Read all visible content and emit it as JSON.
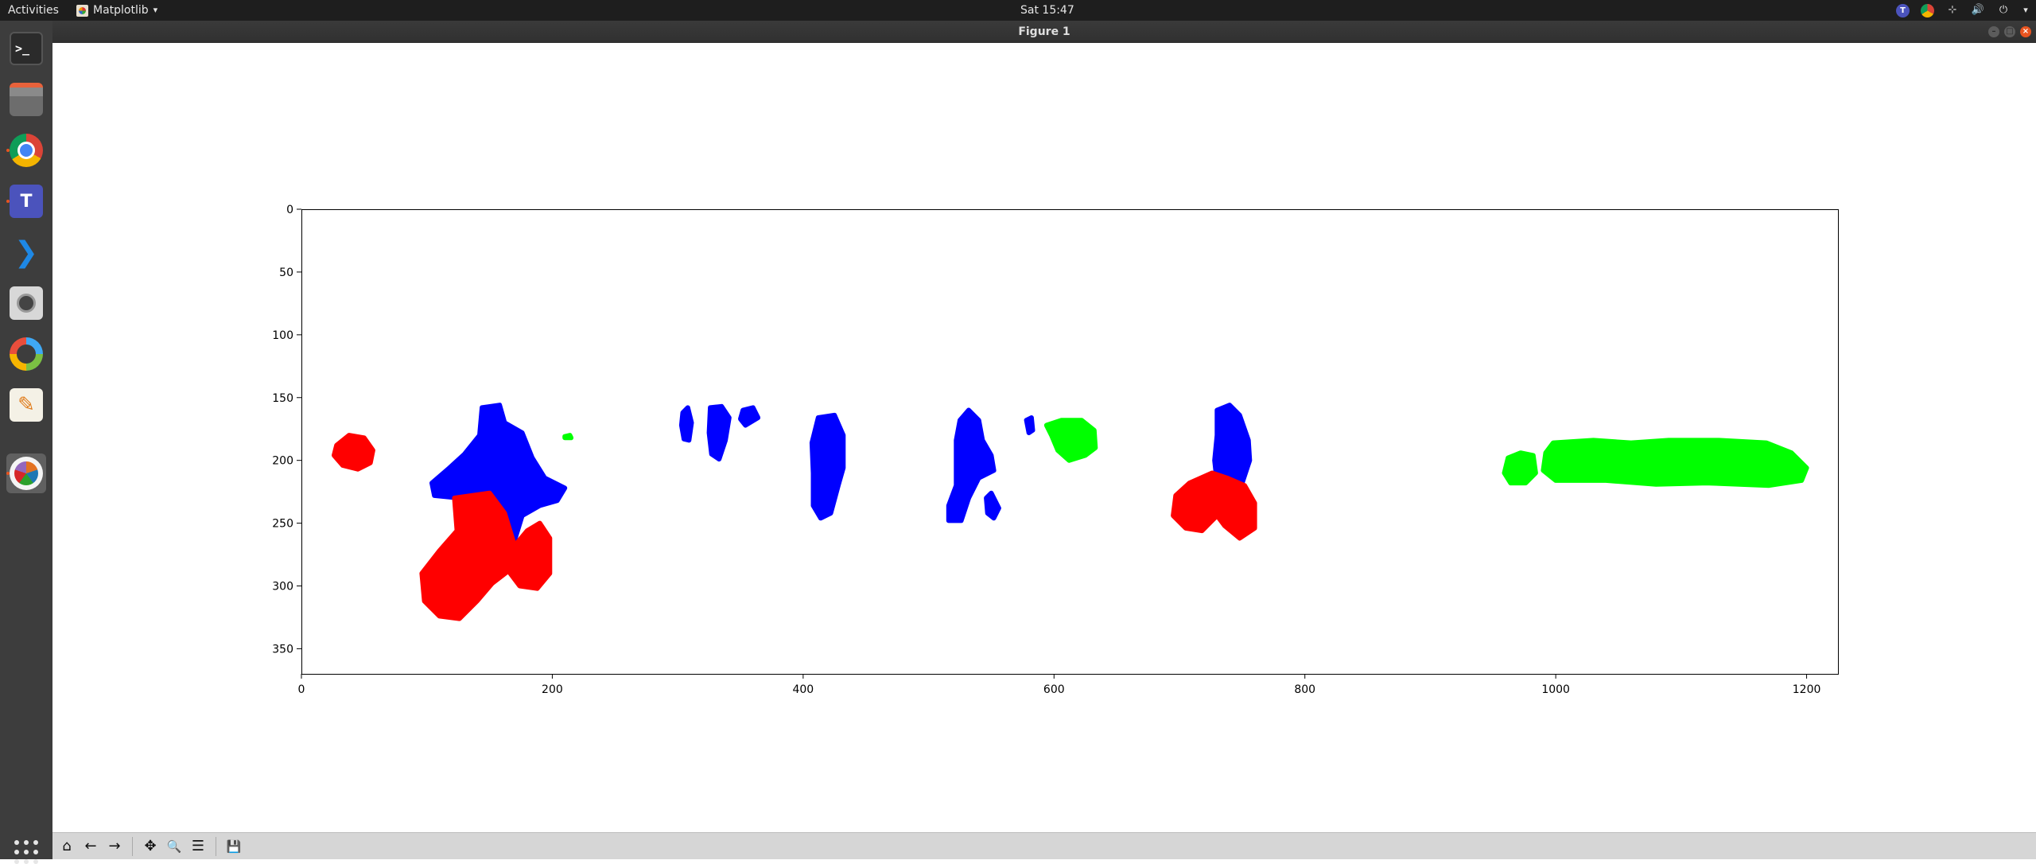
{
  "topbar": {
    "activities": "Activities",
    "app_name": "Matplotlib",
    "app_menu_arrow": "▾",
    "clock": "Sat 15:47",
    "tray_icons": [
      "teams-icon",
      "chrome-icon",
      "network-icon",
      "volume-icon",
      "power-icon",
      "chevron-down-icon"
    ]
  },
  "dock": {
    "items": [
      "terminal",
      "files",
      "chrome",
      "teams",
      "vscode",
      "camera",
      "ring-app",
      "text-editor",
      "matplotlib"
    ],
    "terminal_glyph": ">_",
    "teams_glyph": "T",
    "vscode_glyph": "❯",
    "editor_glyph": "✎"
  },
  "window": {
    "title": "Figure 1",
    "controls": [
      "minimize",
      "maximize",
      "close"
    ]
  },
  "toolbar": {
    "buttons": [
      "home",
      "back",
      "forward",
      "pan",
      "zoom",
      "configure-subplots",
      "save"
    ],
    "home_glyph": "⌂",
    "back_glyph": "←",
    "forward_glyph": "→",
    "pan_glyph": "✥",
    "zoom_glyph": "🔍",
    "configure_glyph": "☰",
    "save_glyph": "💾"
  },
  "chart_data": {
    "type": "image",
    "title": "",
    "xlabel": "",
    "ylabel": "",
    "xlim": [
      0,
      1225
    ],
    "ylim": [
      370,
      0
    ],
    "xticks": [
      "0",
      "200",
      "400",
      "600",
      "800",
      "1000",
      "1200"
    ],
    "xtick_values": [
      0,
      200,
      400,
      600,
      800,
      1000,
      1200
    ],
    "yticks": [
      "0",
      "50",
      "100",
      "150",
      "200",
      "250",
      "300",
      "350"
    ],
    "ytick_values": [
      0,
      50,
      100,
      150,
      200,
      250,
      300,
      350
    ],
    "colors": {
      "red": "#ff0000",
      "blue": "#0000ff",
      "green": "#00ff00",
      "background": "#ffffff"
    },
    "regions": [
      {
        "color": "red",
        "points": [
          [
            28,
            188
          ],
          [
            38,
            180
          ],
          [
            50,
            182
          ],
          [
            57,
            192
          ],
          [
            55,
            202
          ],
          [
            45,
            207
          ],
          [
            33,
            204
          ],
          [
            26,
            196
          ]
        ]
      },
      {
        "color": "blue",
        "points": [
          [
            144,
            158
          ],
          [
            158,
            156
          ],
          [
            162,
            170
          ],
          [
            176,
            178
          ],
          [
            184,
            198
          ],
          [
            194,
            214
          ],
          [
            210,
            222
          ],
          [
            204,
            232
          ],
          [
            190,
            236
          ],
          [
            176,
            244
          ],
          [
            168,
            270
          ],
          [
            160,
            258
          ],
          [
            156,
            238
          ],
          [
            144,
            226
          ],
          [
            126,
            230
          ],
          [
            106,
            228
          ],
          [
            104,
            218
          ],
          [
            118,
            206
          ],
          [
            130,
            195
          ],
          [
            142,
            180
          ]
        ]
      },
      {
        "color": "red",
        "points": [
          [
            122,
            230
          ],
          [
            150,
            226
          ],
          [
            162,
            242
          ],
          [
            170,
            268
          ],
          [
            180,
            256
          ],
          [
            190,
            250
          ],
          [
            198,
            262
          ],
          [
            198,
            290
          ],
          [
            188,
            302
          ],
          [
            174,
            300
          ],
          [
            165,
            288
          ],
          [
            152,
            298
          ],
          [
            140,
            312
          ],
          [
            126,
            326
          ],
          [
            110,
            324
          ],
          [
            98,
            312
          ],
          [
            96,
            290
          ],
          [
            110,
            272
          ],
          [
            124,
            256
          ]
        ]
      },
      {
        "color": "blue",
        "points": [
          [
            304,
            162
          ],
          [
            308,
            158
          ],
          [
            311,
            170
          ],
          [
            309,
            184
          ],
          [
            305,
            183
          ],
          [
            303,
            172
          ]
        ]
      },
      {
        "color": "blue",
        "points": [
          [
            326,
            158
          ],
          [
            335,
            157
          ],
          [
            341,
            166
          ],
          [
            338,
            184
          ],
          [
            333,
            199
          ],
          [
            327,
            195
          ],
          [
            325,
            178
          ]
        ]
      },
      {
        "color": "blue",
        "points": [
          [
            352,
            160
          ],
          [
            360,
            158
          ],
          [
            364,
            166
          ],
          [
            354,
            172
          ],
          [
            350,
            167
          ]
        ]
      },
      {
        "color": "blue",
        "points": [
          [
            412,
            166
          ],
          [
            425,
            164
          ],
          [
            432,
            180
          ],
          [
            432,
            206
          ],
          [
            428,
            220
          ],
          [
            422,
            242
          ],
          [
            414,
            246
          ],
          [
            408,
            236
          ],
          [
            408,
            210
          ],
          [
            407,
            186
          ]
        ]
      },
      {
        "color": "blue",
        "points": [
          [
            525,
            168
          ],
          [
            532,
            160
          ],
          [
            540,
            168
          ],
          [
            543,
            184
          ],
          [
            550,
            196
          ],
          [
            552,
            208
          ],
          [
            540,
            214
          ],
          [
            532,
            230
          ],
          [
            526,
            248
          ],
          [
            516,
            248
          ],
          [
            516,
            236
          ],
          [
            522,
            220
          ],
          [
            522,
            200
          ],
          [
            522,
            184
          ]
        ]
      },
      {
        "color": "blue",
        "points": [
          [
            546,
            230
          ],
          [
            550,
            226
          ],
          [
            556,
            238
          ],
          [
            552,
            246
          ],
          [
            547,
            242
          ]
        ]
      },
      {
        "color": "blue",
        "points": [
          [
            578,
            168
          ],
          [
            582,
            166
          ],
          [
            583,
            176
          ],
          [
            580,
            178
          ]
        ]
      },
      {
        "color": "green",
        "points": [
          [
            594,
            172
          ],
          [
            606,
            168
          ],
          [
            622,
            168
          ],
          [
            632,
            176
          ],
          [
            633,
            190
          ],
          [
            625,
            196
          ],
          [
            612,
            200
          ],
          [
            603,
            192
          ],
          [
            598,
            180
          ]
        ]
      },
      {
        "color": "blue",
        "points": [
          [
            730,
            160
          ],
          [
            740,
            156
          ],
          [
            748,
            164
          ],
          [
            755,
            184
          ],
          [
            756,
            200
          ],
          [
            750,
            218
          ],
          [
            738,
            222
          ],
          [
            730,
            218
          ],
          [
            728,
            200
          ],
          [
            730,
            180
          ]
        ]
      },
      {
        "color": "red",
        "points": [
          [
            708,
            218
          ],
          [
            726,
            210
          ],
          [
            738,
            214
          ],
          [
            752,
            220
          ],
          [
            760,
            234
          ],
          [
            760,
            254
          ],
          [
            748,
            262
          ],
          [
            736,
            252
          ],
          [
            730,
            244
          ],
          [
            718,
            256
          ],
          [
            705,
            254
          ],
          [
            695,
            244
          ],
          [
            697,
            228
          ]
        ]
      },
      {
        "color": "green",
        "points": [
          [
            962,
            198
          ],
          [
            972,
            194
          ],
          [
            982,
            196
          ],
          [
            984,
            210
          ],
          [
            976,
            218
          ],
          [
            964,
            218
          ],
          [
            959,
            210
          ]
        ]
      },
      {
        "color": "green",
        "points": [
          [
            998,
            186
          ],
          [
            1030,
            184
          ],
          [
            1060,
            186
          ],
          [
            1090,
            184
          ],
          [
            1130,
            184
          ],
          [
            1168,
            186
          ],
          [
            1188,
            194
          ],
          [
            1200,
            206
          ],
          [
            1196,
            216
          ],
          [
            1170,
            220
          ],
          [
            1120,
            218
          ],
          [
            1080,
            219
          ],
          [
            1040,
            216
          ],
          [
            1000,
            216
          ],
          [
            990,
            208
          ],
          [
            992,
            194
          ]
        ]
      },
      {
        "color": "green",
        "points": [
          [
            210,
            181
          ],
          [
            214,
            180
          ],
          [
            215,
            182
          ],
          [
            210,
            182
          ]
        ]
      }
    ]
  }
}
